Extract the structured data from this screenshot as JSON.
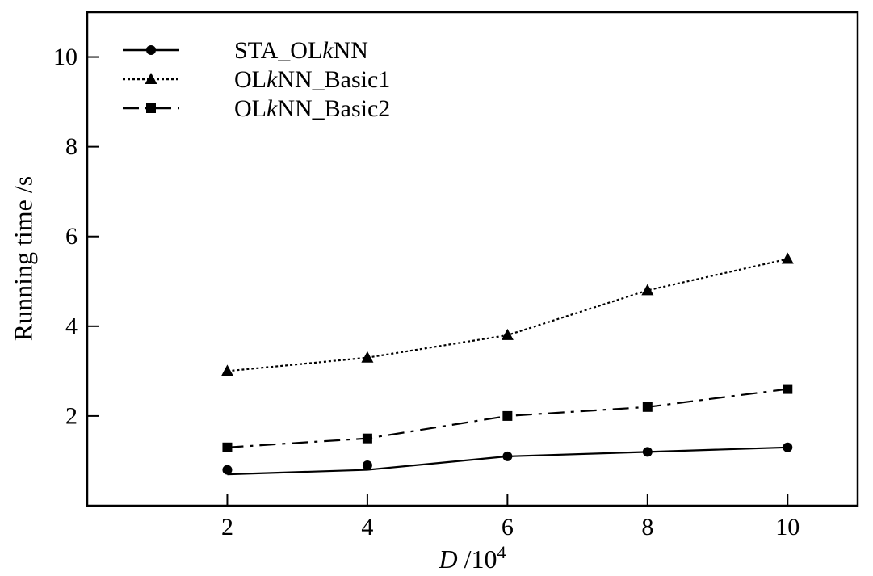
{
  "chart_data": {
    "type": "line",
    "title": "",
    "xlabel": "D /10^4",
    "xlabel_parts": {
      "var": "D",
      "unit_base": " /10",
      "unit_exp": "4"
    },
    "ylabel": "Running time /s",
    "x": [
      2,
      4,
      6,
      8,
      10
    ],
    "xlim": [
      0,
      11
    ],
    "ylim": [
      0,
      11
    ],
    "xticks": [
      2,
      4,
      6,
      8,
      10
    ],
    "yticks": [
      2,
      4,
      6,
      8,
      10
    ],
    "grid": false,
    "legend_position": "top-left",
    "series": [
      {
        "name": "STA_OLkNN",
        "name_parts": [
          "STA_OL",
          "k",
          "NN"
        ],
        "marker": "circle",
        "line_style": "solid",
        "color": "#000000",
        "values": [
          0.8,
          0.9,
          1.1,
          1.2,
          1.3
        ],
        "line_values": [
          0.7,
          0.8,
          1.1,
          1.2,
          1.3
        ]
      },
      {
        "name": "OLkNN_Basic1",
        "name_parts": [
          "OL",
          "k",
          "NN_Basic1"
        ],
        "marker": "triangle",
        "line_style": "dotted",
        "color": "#000000",
        "values": [
          3.0,
          3.3,
          3.8,
          4.8,
          5.5
        ]
      },
      {
        "name": "OLkNN_Basic2",
        "name_parts": [
          "OL",
          "k",
          "NN_Basic2"
        ],
        "marker": "square",
        "line_style": "dashdot",
        "color": "#000000",
        "values": [
          1.3,
          1.5,
          2.0,
          2.2,
          2.6
        ]
      }
    ]
  }
}
